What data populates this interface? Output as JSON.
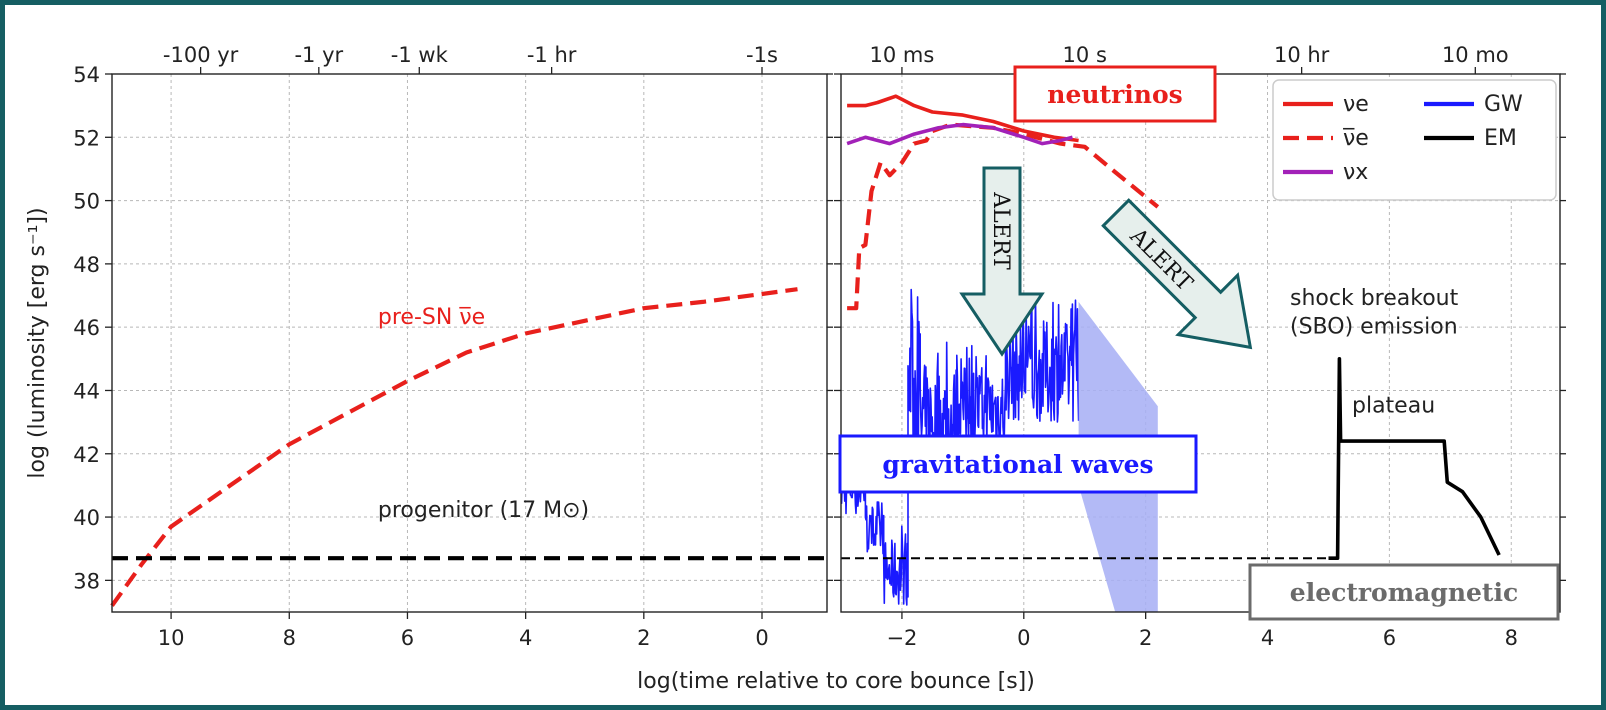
{
  "chart_data": {
    "type": "line",
    "xlabel": "log(time relative to core bounce [s])",
    "ylabel": "log (luminosity [erg s⁻¹])",
    "ylim": [
      37,
      54
    ],
    "yticks": [
      38,
      40,
      42,
      44,
      46,
      48,
      50,
      52,
      54
    ],
    "grid": true,
    "panels": [
      {
        "name": "pre-bounce",
        "xlim": [
          11,
          -1.1
        ],
        "xticks": [
          10,
          8,
          6,
          4,
          2,
          0
        ],
        "top_ticks": [
          {
            "x": 9.5,
            "label": "-100 yr"
          },
          {
            "x": 7.5,
            "label": "-1 yr"
          },
          {
            "x": 5.8,
            "label": "-1 wk"
          },
          {
            "x": 3.56,
            "label": "-1 hr"
          },
          {
            "x": 0,
            "label": "-1s"
          }
        ],
        "series": [
          {
            "label": "pre-SN ν̅e",
            "color": "#e8201c",
            "style": "dashed",
            "points": [
              [
                11,
                37.2
              ],
              [
                10.5,
                38.5
              ],
              [
                10,
                39.7
              ],
              [
                9,
                41.0
              ],
              [
                8,
                42.3
              ],
              [
                7,
                43.3
              ],
              [
                6,
                44.3
              ],
              [
                5,
                45.2
              ],
              [
                4,
                45.8
              ],
              [
                3,
                46.2
              ],
              [
                2,
                46.6
              ],
              [
                1,
                46.8
              ],
              [
                -0.6,
                47.2
              ]
            ]
          },
          {
            "label": "progenitor (17 M⊙)",
            "color": "#000000",
            "style": "dashed",
            "points": [
              [
                11,
                38.7
              ],
              [
                -1.1,
                38.7
              ]
            ]
          }
        ]
      },
      {
        "name": "post-bounce",
        "xlim": [
          -3.0,
          8.8
        ],
        "xticks": [
          -2,
          0,
          2,
          4,
          6,
          8
        ],
        "top_ticks": [
          {
            "x": -2,
            "label": "10 ms"
          },
          {
            "x": 1,
            "label": "10 s"
          },
          {
            "x": 4.56,
            "label": "10 hr"
          },
          {
            "x": 7.41,
            "label": "10 mo"
          }
        ],
        "series": [
          {
            "name": "νe",
            "color": "#e8201c",
            "style": "solid",
            "points": [
              [
                -2.9,
                53.0
              ],
              [
                -2.6,
                53.0
              ],
              [
                -2.4,
                53.1
              ],
              [
                -2.1,
                53.3
              ],
              [
                -1.8,
                53.0
              ],
              [
                -1.5,
                52.8
              ],
              [
                -1.0,
                52.7
              ],
              [
                -0.5,
                52.5
              ],
              [
                0,
                52.2
              ],
              [
                0.5,
                52.0
              ],
              [
                0.9,
                51.9
              ]
            ]
          },
          {
            "name": "ν̅e",
            "color": "#e8201c",
            "style": "dashed",
            "points": [
              [
                -2.9,
                46.6
              ],
              [
                -2.75,
                46.6
              ],
              [
                -2.7,
                48.5
              ],
              [
                -2.6,
                48.6
              ],
              [
                -2.5,
                50.3
              ],
              [
                -2.35,
                51.2
              ],
              [
                -2.2,
                50.8
              ],
              [
                -2.0,
                51.2
              ],
              [
                -1.8,
                51.8
              ],
              [
                -1.6,
                51.9
              ],
              [
                -1.5,
                52.2
              ],
              [
                -1.2,
                52.4
              ],
              [
                -0.5,
                52.3
              ],
              [
                0,
                52.1
              ],
              [
                0.6,
                51.8
              ],
              [
                1.0,
                51.7
              ],
              [
                1.5,
                50.9
              ],
              [
                2.2,
                49.8
              ]
            ]
          },
          {
            "name": "νx",
            "color": "#a221b8",
            "style": "solid",
            "points": [
              [
                -2.9,
                51.8
              ],
              [
                -2.6,
                52.0
              ],
              [
                -2.2,
                51.8
              ],
              [
                -1.8,
                52.1
              ],
              [
                -1.4,
                52.3
              ],
              [
                -1.0,
                52.4
              ],
              [
                -0.5,
                52.3
              ],
              [
                0,
                52.0
              ],
              [
                0.3,
                51.8
              ],
              [
                0.6,
                51.9
              ],
              [
                0.8,
                52.0
              ]
            ]
          },
          {
            "name": "GW",
            "color": "#1a1aff",
            "style": "noisy",
            "segments": [
              {
                "x0": -3.0,
                "x1": -2.6,
                "lo": 40.0,
                "hi": 42.6
              },
              {
                "x0": -2.6,
                "x1": -2.3,
                "lo": 38.8,
                "hi": 40.5
              },
              {
                "x0": -2.3,
                "x1": -1.9,
                "lo": 37.2,
                "hi": 39.8
              },
              {
                "x0": -1.9,
                "x1": -1.7,
                "lo": 41.0,
                "hi": 48.0
              },
              {
                "x0": -1.7,
                "x1": -1.1,
                "lo": 41.0,
                "hi": 45.8
              },
              {
                "x0": -1.1,
                "x1": -0.3,
                "lo": 42.0,
                "hi": 45.5
              },
              {
                "x0": -0.3,
                "x1": 0.9,
                "lo": 43.0,
                "hi": 47.0
              }
            ]
          },
          {
            "name": "GW band",
            "color": "#a6aef5",
            "style": "fill",
            "points": [
              [
                0.9,
                46.8
              ],
              [
                2.2,
                43.5
              ],
              [
                2.2,
                37.0
              ],
              [
                1.5,
                37.0
              ],
              [
                0.9,
                41.0
              ]
            ]
          },
          {
            "name": "EM",
            "color": "#000000",
            "style": "solid",
            "points": [
              [
                5.0,
                38.7
              ],
              [
                5.15,
                38.7
              ],
              [
                5.18,
                45.0
              ],
              [
                5.2,
                42.4
              ],
              [
                6.9,
                42.4
              ],
              [
                6.95,
                41.1
              ],
              [
                7.2,
                40.8
              ],
              [
                7.5,
                40.0
              ],
              [
                7.8,
                38.8
              ]
            ]
          },
          {
            "label": "progenitor",
            "color": "#000000",
            "style": "thin-dashed",
            "points": [
              [
                -3.0,
                38.7
              ],
              [
                5.0,
                38.7
              ]
            ]
          }
        ]
      }
    ],
    "annotations": {
      "pre_sn": "pre-SN ν̅e",
      "progenitor": "progenitor (17 M⊙)",
      "sbo_line1": "shock breakout",
      "sbo_line2": "(SBO) emission",
      "plateau": "plateau",
      "neutrinos": "neutrinos",
      "gravitational_waves": "gravitational waves",
      "electromagnetic": "electromagnetic",
      "alert1": "ALERT",
      "alert2": "ALERT"
    },
    "legend": {
      "placement": "top-right",
      "entries": [
        {
          "label": "νe",
          "color": "#e8201c",
          "style": "solid"
        },
        {
          "label": "ν̅e",
          "color": "#e8201c",
          "style": "dashed"
        },
        {
          "label": "νx",
          "color": "#a221b8",
          "style": "solid"
        },
        {
          "label": "GW",
          "color": "#1a1aff",
          "style": "solid"
        },
        {
          "label": "EM",
          "color": "#000000",
          "style": "solid"
        }
      ]
    },
    "colors": {
      "frame": "#155e63",
      "arrow_fill": "#e6efec",
      "arrow_stroke": "#155e63",
      "neutrinos_box": "#e8201c",
      "gw_box": "#1a1aff",
      "em_box": "#6b6b6b"
    }
  }
}
